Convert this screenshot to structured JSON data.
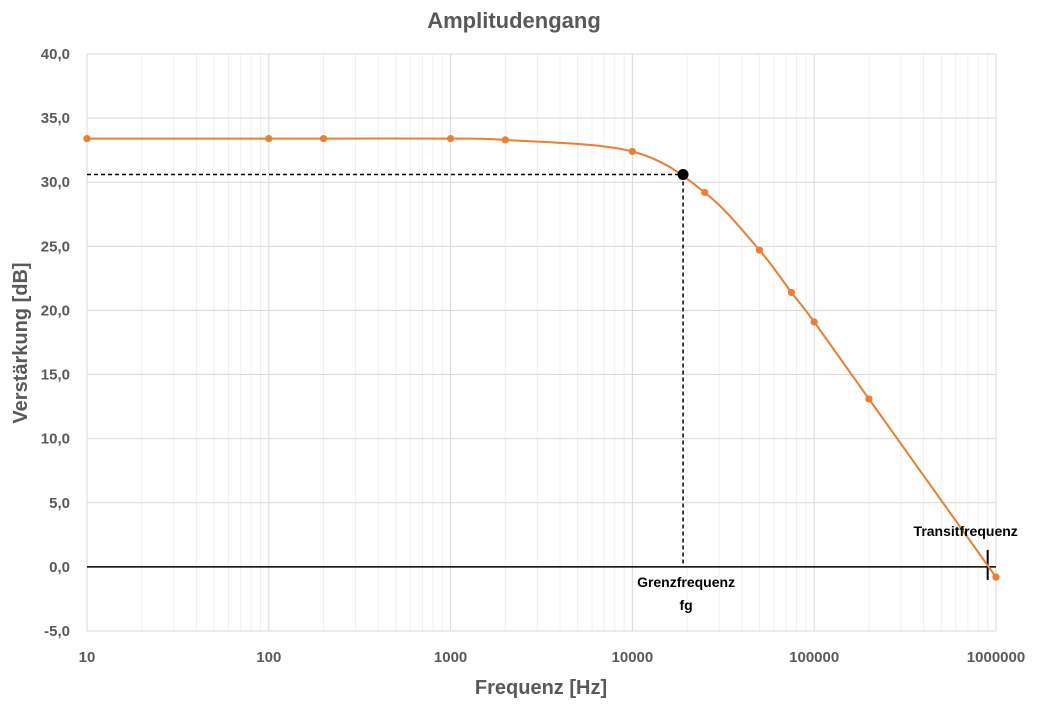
{
  "chart_data": {
    "type": "line",
    "title": "Amplitudengang",
    "xlabel": "Frequenz [Hz]",
    "ylabel": "Verstärkung [dB]",
    "x_scale": "log",
    "xlim": [
      10,
      1000000
    ],
    "ylim": [
      -5,
      40
    ],
    "x_ticks": [
      "10",
      "100",
      "1000",
      "10000",
      "100000",
      "1000000"
    ],
    "y_ticks": [
      "-5,0",
      "0,0",
      "5,0",
      "10,0",
      "15,0",
      "20,0",
      "25,0",
      "30,0",
      "35,0",
      "40,0"
    ],
    "grid": true,
    "legend": "none",
    "series": [
      {
        "color": "#ED7D31",
        "x": [
          10,
          100,
          200,
          1000,
          2000,
          10000,
          25000,
          50000,
          75000,
          100000,
          200000,
          1000000
        ],
        "y": [
          33.4,
          33.4,
          33.4,
          33.4,
          33.3,
          32.4,
          29.2,
          24.7,
          21.4,
          19.1,
          13.1,
          -0.8
        ]
      }
    ],
    "highlight_point": {
      "x": 19000,
      "y": 30.6,
      "color": "#000000"
    },
    "annotations": {
      "cutoff_line1": "Grenzfrequenz",
      "cutoff_line2": "fg",
      "transit": "Transitfrequenz",
      "transit_x": 900000
    }
  }
}
